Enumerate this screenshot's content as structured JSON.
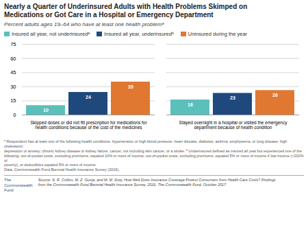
{
  "chart_data": {
    "type": "bar",
    "title": "Nearly a Quarter of Underinsured Adults with Health Problems Skimped on\nMedications or Got Care in a Hospital or Emergency Department",
    "subtitle": "Percent adults ages 19–64 who have at least one health problemᵃ",
    "categories": [
      "Skipped doses or did not fill prescription for medications for\nhealth conditions because of the cost of the medicines",
      "Stayed overnight in a hospital or visited the emergency\ndepartment because of health condition"
    ],
    "series": [
      {
        "name": "Insured all year, not underinsuredᵃ",
        "color": "#5bbfbb",
        "values": [
          10,
          16
        ]
      },
      {
        "name": "Insured all year, underinsuredᵇ",
        "color": "#1f497d",
        "values": [
          24,
          23
        ]
      },
      {
        "name": "Uninsured during the year",
        "color": "#e07832",
        "values": [
          35,
          26
        ]
      }
    ],
    "ylim": [
      0,
      75
    ],
    "yticks": [
      0,
      15,
      30,
      45,
      60,
      75
    ],
    "grid": true,
    "legend": "upper left",
    "data_labels": true,
    "footnote": "ᵃ Respondent has at least one of the following health conditions: hypertension or high blood pressure; heart disease; diabetes; asthma, emphysema, or lung disease; high cholesterol;\ndepression or anxiety; chronic kidney disease or kidney failure; cancer, not including skin cancer; or a stroke. ᵇ Underinsured defined as insured all year but experienced one of the\nfollowing: out-of-pocket costs, excluding premiums, equaled 10% or more of income; out-of-pocket costs, excluding premiums, equaled 5% or more of income if low-income (<200% of\npoverty); or deductibles equaled 5% or more of income.\nData: Commonwealth Fund Biennial Health Insurance Survey (2016).",
    "org_name": "The\nCommonwealth\nFund",
    "source": "Source: S. R. Collins, M. Z. Gunja, and M. M. Doty, How Well Does Insurance Coverage Protect Consumers from Health Care Costs? Findings\nfrom the Commonwealth Fund Biennial Health Insurance Survey, 2016, The Commonwealth Fund, October 2017."
  }
}
